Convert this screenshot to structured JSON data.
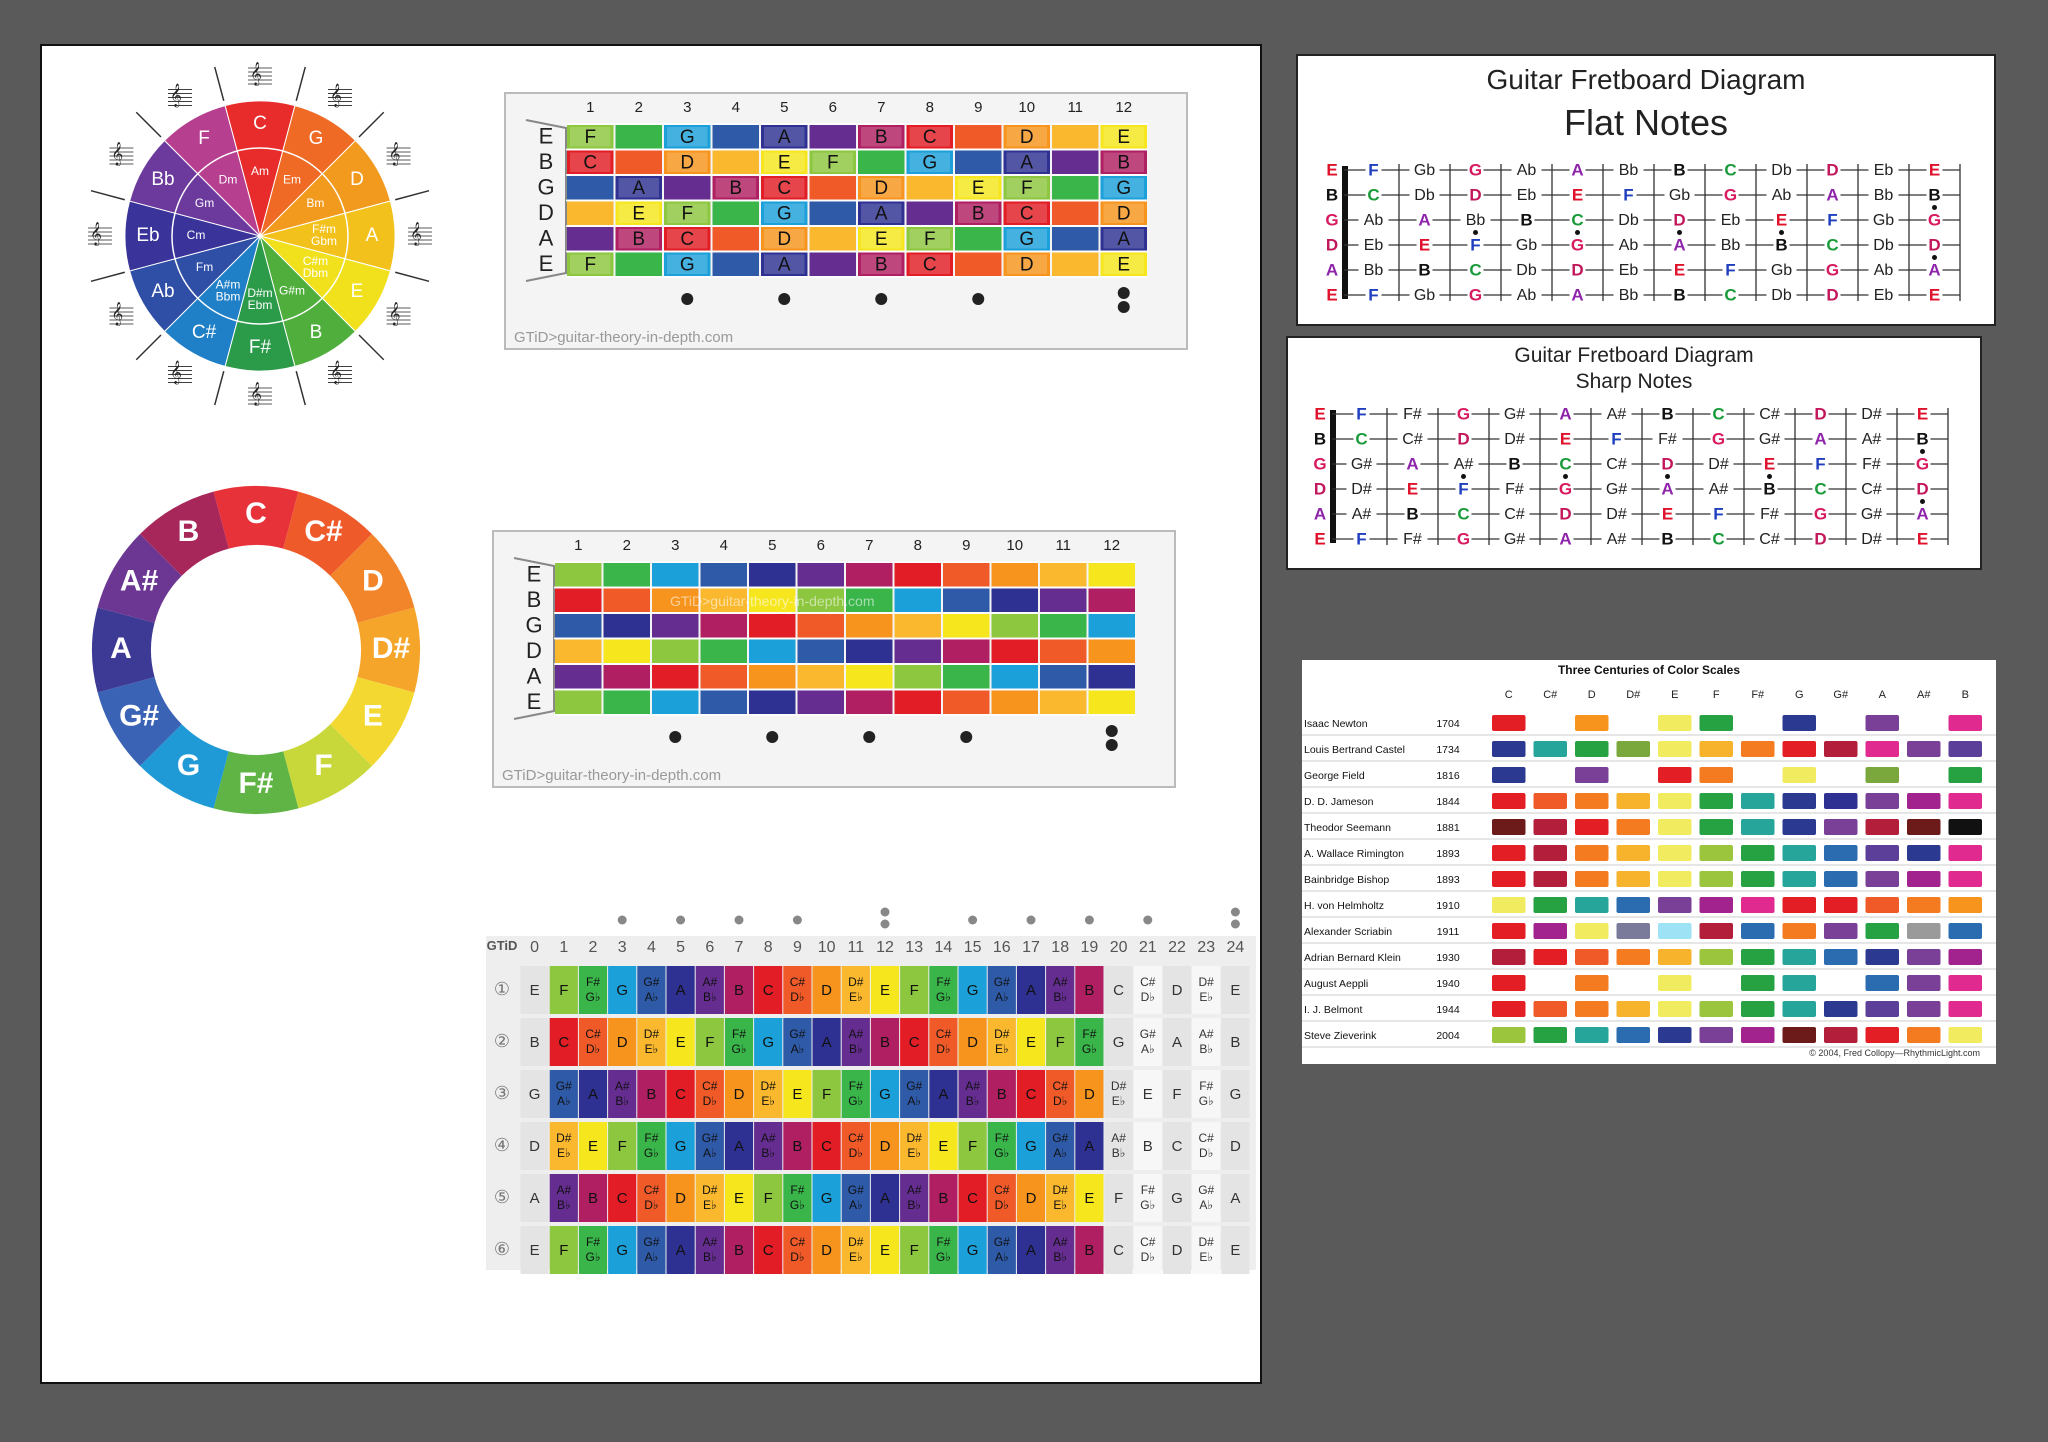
{
  "circle_of_fifths": {
    "major": [
      "C",
      "G",
      "D",
      "A",
      "E",
      "B",
      "F#",
      "C#",
      "Ab",
      "Eb",
      "Bb",
      "F"
    ],
    "minor": [
      "Am",
      "Em",
      "Bm",
      "F#m\nGbm",
      "C#m\nDbm",
      "G#m",
      "D#m\nEbm",
      "A#m\nBbm",
      "Fm",
      "Cm",
      "Gm",
      "Dm"
    ],
    "outer_labels": [
      "C",
      "G",
      "D",
      "A",
      "E",
      "B",
      "F#\nGb",
      "C#\nDb",
      "Ab",
      "Eb",
      "Bb",
      "F"
    ],
    "colors": [
      "#e82c2c",
      "#ef6a24",
      "#f29a1e",
      "#f3c11b",
      "#f1e11c",
      "#4fae3c",
      "#2b9b4a",
      "#1f7fc7",
      "#2f4ea6",
      "#3a3399",
      "#6b3a9c",
      "#b63f8f"
    ]
  },
  "chromatic_wheel": {
    "notes": [
      "C",
      "C#",
      "D",
      "D#",
      "E",
      "F",
      "F#",
      "G",
      "G#",
      "A",
      "A#",
      "B"
    ],
    "colors": [
      "#e8323a",
      "#ef5a2a",
      "#f2842a",
      "#f6a52b",
      "#f2d830",
      "#c8d83a",
      "#5fb445",
      "#1f9ad6",
      "#3b63b5",
      "#3c3a94",
      "#6c3793",
      "#a8275a"
    ]
  },
  "note_colors": {
    "C": "#e21d25",
    "C#": "#f05a28",
    "D": "#f7941d",
    "D#": "#f9b82e",
    "E": "#f5e61d",
    "F": "#8dc63f",
    "F#": "#39b54a",
    "G": "#1ba0d9",
    "G#": "#2e5aa8",
    "A": "#2e3192",
    "A#": "#662d91",
    "B": "#b01f61"
  },
  "fretboard_a": {
    "frets": [
      "1",
      "2",
      "3",
      "4",
      "5",
      "6",
      "7",
      "8",
      "9",
      "10",
      "11",
      "12"
    ],
    "strings": [
      "E",
      "B",
      "G",
      "D",
      "A",
      "E"
    ],
    "rows": [
      [
        "F",
        "",
        "G",
        "",
        "A",
        "",
        "B",
        "C",
        "",
        "D",
        "",
        "E"
      ],
      [
        "C",
        "",
        "D",
        "",
        "E",
        "F",
        "",
        "G",
        "",
        "A",
        "",
        "B"
      ],
      [
        "",
        "A",
        "",
        "B",
        "C",
        "",
        "D",
        "",
        "E",
        "F",
        "",
        "G"
      ],
      [
        "",
        "E",
        "F",
        "",
        "G",
        "",
        "A",
        "",
        "B",
        "C",
        "",
        "D"
      ],
      [
        "",
        "B",
        "C",
        "",
        "D",
        "",
        "E",
        "F",
        "",
        "G",
        "",
        "A"
      ],
      [
        "F",
        "",
        "G",
        "",
        "A",
        "",
        "B",
        "C",
        "",
        "D",
        "",
        "E"
      ]
    ],
    "credit": "GTiD>guitar-theory-in-depth.com"
  },
  "fretboard_b": {
    "frets": [
      "1",
      "2",
      "3",
      "4",
      "5",
      "6",
      "7",
      "8",
      "9",
      "10",
      "11",
      "12"
    ],
    "strings": [
      "E",
      "B",
      "G",
      "D",
      "A",
      "E"
    ],
    "watermark": "GTiD>guitar-theory-in-depth.com",
    "credit": "GTiD>guitar-theory-in-depth.com"
  },
  "fretboard_24": {
    "corner": "GTiD",
    "frets": [
      "0",
      "1",
      "2",
      "3",
      "4",
      "5",
      "6",
      "7",
      "8",
      "9",
      "10",
      "11",
      "12",
      "13",
      "14",
      "15",
      "16",
      "17",
      "18",
      "19",
      "20",
      "21",
      "22",
      "23",
      "24"
    ],
    "string_marks": [
      "①",
      "②",
      "③",
      "④",
      "⑤",
      "⑥"
    ],
    "open_notes": [
      "E",
      "B",
      "G",
      "D",
      "A",
      "E"
    ]
  },
  "flat_diagram": {
    "title": "Guitar Fretboard Diagram",
    "subtitle": "Flat Notes",
    "strings": [
      [
        "E",
        "F",
        "Gb",
        "G",
        "Ab",
        "A",
        "Bb",
        "B",
        "C",
        "Db",
        "D",
        "Eb",
        "E"
      ],
      [
        "B",
        "C",
        "Db",
        "D",
        "Eb",
        "E",
        "F",
        "Gb",
        "G",
        "Ab",
        "A",
        "Bb",
        "B"
      ],
      [
        "G",
        "Ab",
        "A",
        "Bb",
        "B",
        "C",
        "Db",
        "D",
        "Eb",
        "E",
        "F",
        "Gb",
        "G"
      ],
      [
        "D",
        "Eb",
        "E",
        "F",
        "Gb",
        "G",
        "Ab",
        "A",
        "Bb",
        "B",
        "C",
        "Db",
        "D"
      ],
      [
        "A",
        "Bb",
        "B",
        "C",
        "Db",
        "D",
        "Eb",
        "E",
        "F",
        "Gb",
        "G",
        "Ab",
        "A"
      ],
      [
        "E",
        "F",
        "Gb",
        "G",
        "Ab",
        "A",
        "Bb",
        "B",
        "C",
        "Db",
        "D",
        "Eb",
        "E"
      ]
    ]
  },
  "sharp_diagram": {
    "title": "Guitar Fretboard Diagram",
    "subtitle": "Sharp Notes",
    "strings": [
      [
        "E",
        "F",
        "F#",
        "G",
        "G#",
        "A",
        "A#",
        "B",
        "C",
        "C#",
        "D",
        "D#",
        "E"
      ],
      [
        "B",
        "C",
        "C#",
        "D",
        "D#",
        "E",
        "F",
        "F#",
        "G",
        "G#",
        "A",
        "A#",
        "B"
      ],
      [
        "G",
        "G#",
        "A",
        "A#",
        "B",
        "C",
        "C#",
        "D",
        "D#",
        "E",
        "F",
        "F#",
        "G"
      ],
      [
        "D",
        "D#",
        "E",
        "F",
        "F#",
        "G",
        "G#",
        "A",
        "A#",
        "B",
        "C",
        "C#",
        "D"
      ],
      [
        "A",
        "A#",
        "B",
        "C",
        "C#",
        "D",
        "D#",
        "E",
        "F",
        "F#",
        "G",
        "G#",
        "A"
      ],
      [
        "E",
        "F",
        "F#",
        "G",
        "G#",
        "A",
        "A#",
        "B",
        "C",
        "C#",
        "D",
        "D#",
        "E"
      ]
    ]
  },
  "color_scales": {
    "title": "Three Centuries of Color Scales",
    "notes": [
      "C",
      "C#",
      "D",
      "D#",
      "E",
      "F",
      "F#",
      "G",
      "G#",
      "A",
      "A#",
      "B"
    ],
    "credit": "© 2004, Fred Collopy—RhythmicLight.com",
    "rows": [
      {
        "name": "Isaac Newton",
        "year": "1704",
        "colors": [
          "#e31e24",
          "",
          "#f7941d",
          "",
          "#f1eb60",
          "#27a243",
          "",
          "#2b3990",
          "",
          "#7a3f97",
          "",
          "#e12a8f"
        ]
      },
      {
        "name": "Louis Bertrand Castel",
        "year": "1734",
        "colors": [
          "#2b3990",
          "#26a69a",
          "#27a243",
          "#7aa83c",
          "#f1eb60",
          "#f7b32b",
          "#f47b20",
          "#e31e24",
          "#b31e3a",
          "#e12a8f",
          "#7a3f97",
          "#5b3f99"
        ]
      },
      {
        "name": "George Field",
        "year": "1816",
        "colors": [
          "#2b3990",
          "",
          "#7a3f97",
          "",
          "#e31e24",
          "#f47b20",
          "",
          "#f1eb60",
          "",
          "#7aa83c",
          "",
          "#27a243"
        ]
      },
      {
        "name": "D. D. Jameson",
        "year": "1844",
        "colors": [
          "#e31e24",
          "#f05a28",
          "#f47b20",
          "#f7b32b",
          "#f1eb60",
          "#27a243",
          "#26a69a",
          "#2b3990",
          "#2e3192",
          "#7a3f97",
          "#a3238e",
          "#e12a8f"
        ]
      },
      {
        "name": "Theodor Seemann",
        "year": "1881",
        "colors": [
          "#6d1a1a",
          "#b31e3a",
          "#e31e24",
          "#f47b20",
          "#f1eb60",
          "#27a243",
          "#26a69a",
          "#2b3990",
          "#7a3f97",
          "#b31e3a",
          "#6d1a1a",
          "#111111"
        ]
      },
      {
        "name": "A. Wallace Rimington",
        "year": "1893",
        "colors": [
          "#e31e24",
          "#b31e3a",
          "#f47b20",
          "#f7b32b",
          "#f1eb60",
          "#9bc53d",
          "#27a243",
          "#26a69a",
          "#2b6cb0",
          "#5b3f99",
          "#2b3990",
          "#e12a8f"
        ]
      },
      {
        "name": "Bainbridge Bishop",
        "year": "1893",
        "colors": [
          "#e31e24",
          "#b31e3a",
          "#f47b20",
          "#f7b32b",
          "#f1eb60",
          "#9bc53d",
          "#27a243",
          "#26a69a",
          "#2b6cb0",
          "#7a3f97",
          "#a3238e",
          "#e12a8f"
        ]
      },
      {
        "name": "H. von Helmholtz",
        "year": "1910",
        "colors": [
          "#f1eb60",
          "#27a243",
          "#26a69a",
          "#2b6cb0",
          "#7a3f97",
          "#a3238e",
          "#e12a8f",
          "#e31e24",
          "#e31e24",
          "#f05a28",
          "#f47b20",
          "#f7941d"
        ]
      },
      {
        "name": "Alexander Scriabin",
        "year": "1911",
        "colors": [
          "#e31e24",
          "#a3238e",
          "#f1eb60",
          "#7a7a9a",
          "#9ee3f5",
          "#b31e3a",
          "#2b6cb0",
          "#f47b20",
          "#7a3f97",
          "#27a243",
          "#9a9a9a",
          "#2b6cb0"
        ]
      },
      {
        "name": "Adrian Bernard Klein",
        "year": "1930",
        "colors": [
          "#b31e3a",
          "#e31e24",
          "#f05a28",
          "#f47b20",
          "#f7b32b",
          "#9bc53d",
          "#27a243",
          "#26a69a",
          "#2b6cb0",
          "#2b3990",
          "#7a3f97",
          "#a3238e"
        ]
      },
      {
        "name": "August Aeppli",
        "year": "1940",
        "colors": [
          "#e31e24",
          "",
          "#f47b20",
          "",
          "#f1eb60",
          "",
          "#27a243",
          "#26a69a",
          "",
          "#2b6cb0",
          "#7a3f97",
          "#e12a8f"
        ]
      },
      {
        "name": "I. J. Belmont",
        "year": "1944",
        "colors": [
          "#e31e24",
          "#f05a28",
          "#f47b20",
          "#f7b32b",
          "#f1eb60",
          "#9bc53d",
          "#27a243",
          "#26a69a",
          "#2b3990",
          "#5b3f99",
          "#7a3f97",
          "#e12a8f"
        ]
      },
      {
        "name": "Steve Zieverink",
        "year": "2004",
        "colors": [
          "#9bc53d",
          "#27a243",
          "#26a69a",
          "#2b6cb0",
          "#2b3990",
          "#7a3f97",
          "#a3238e",
          "#6d1a1a",
          "#b31e3a",
          "#e31e24",
          "#f47b20",
          "#f1eb60"
        ]
      }
    ]
  }
}
